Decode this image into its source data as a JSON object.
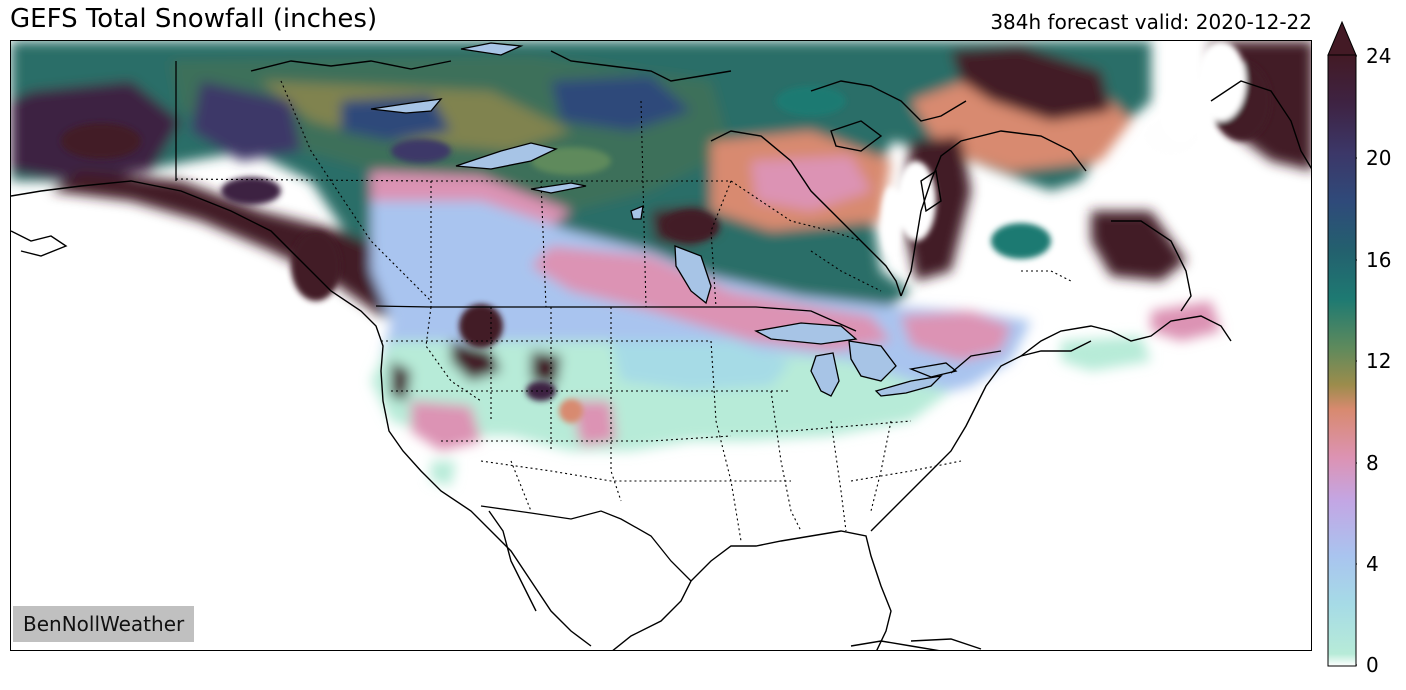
{
  "header": {
    "title": "GEFS Total Snowfall (inches)",
    "valid": "384h forecast valid: 2020-12-22"
  },
  "watermark": "BenNollWeather",
  "colorbar": {
    "ticks": [
      "24",
      "20",
      "16",
      "12",
      "8",
      "4",
      "0"
    ],
    "extend": "max",
    "colors": {
      "0": "#ffffff",
      "1": "#b7ebd8",
      "2": "#a6dbe6",
      "4": "#a9c4ef",
      "6": "#c3a6e4",
      "8": "#dc93b4",
      "10": "#d88a6f",
      "11": "#9c8c4c",
      "12": "#5f8a5c",
      "14": "#1e7a72",
      "16": "#23606e",
      "18": "#2f4a7a",
      "20": "#3c3768",
      "22": "#3e2343",
      "24": "#431a25"
    }
  },
  "map": {
    "region": "North America",
    "lake_color": "#a7c4e6",
    "ocean_color": "#ffffff"
  }
}
